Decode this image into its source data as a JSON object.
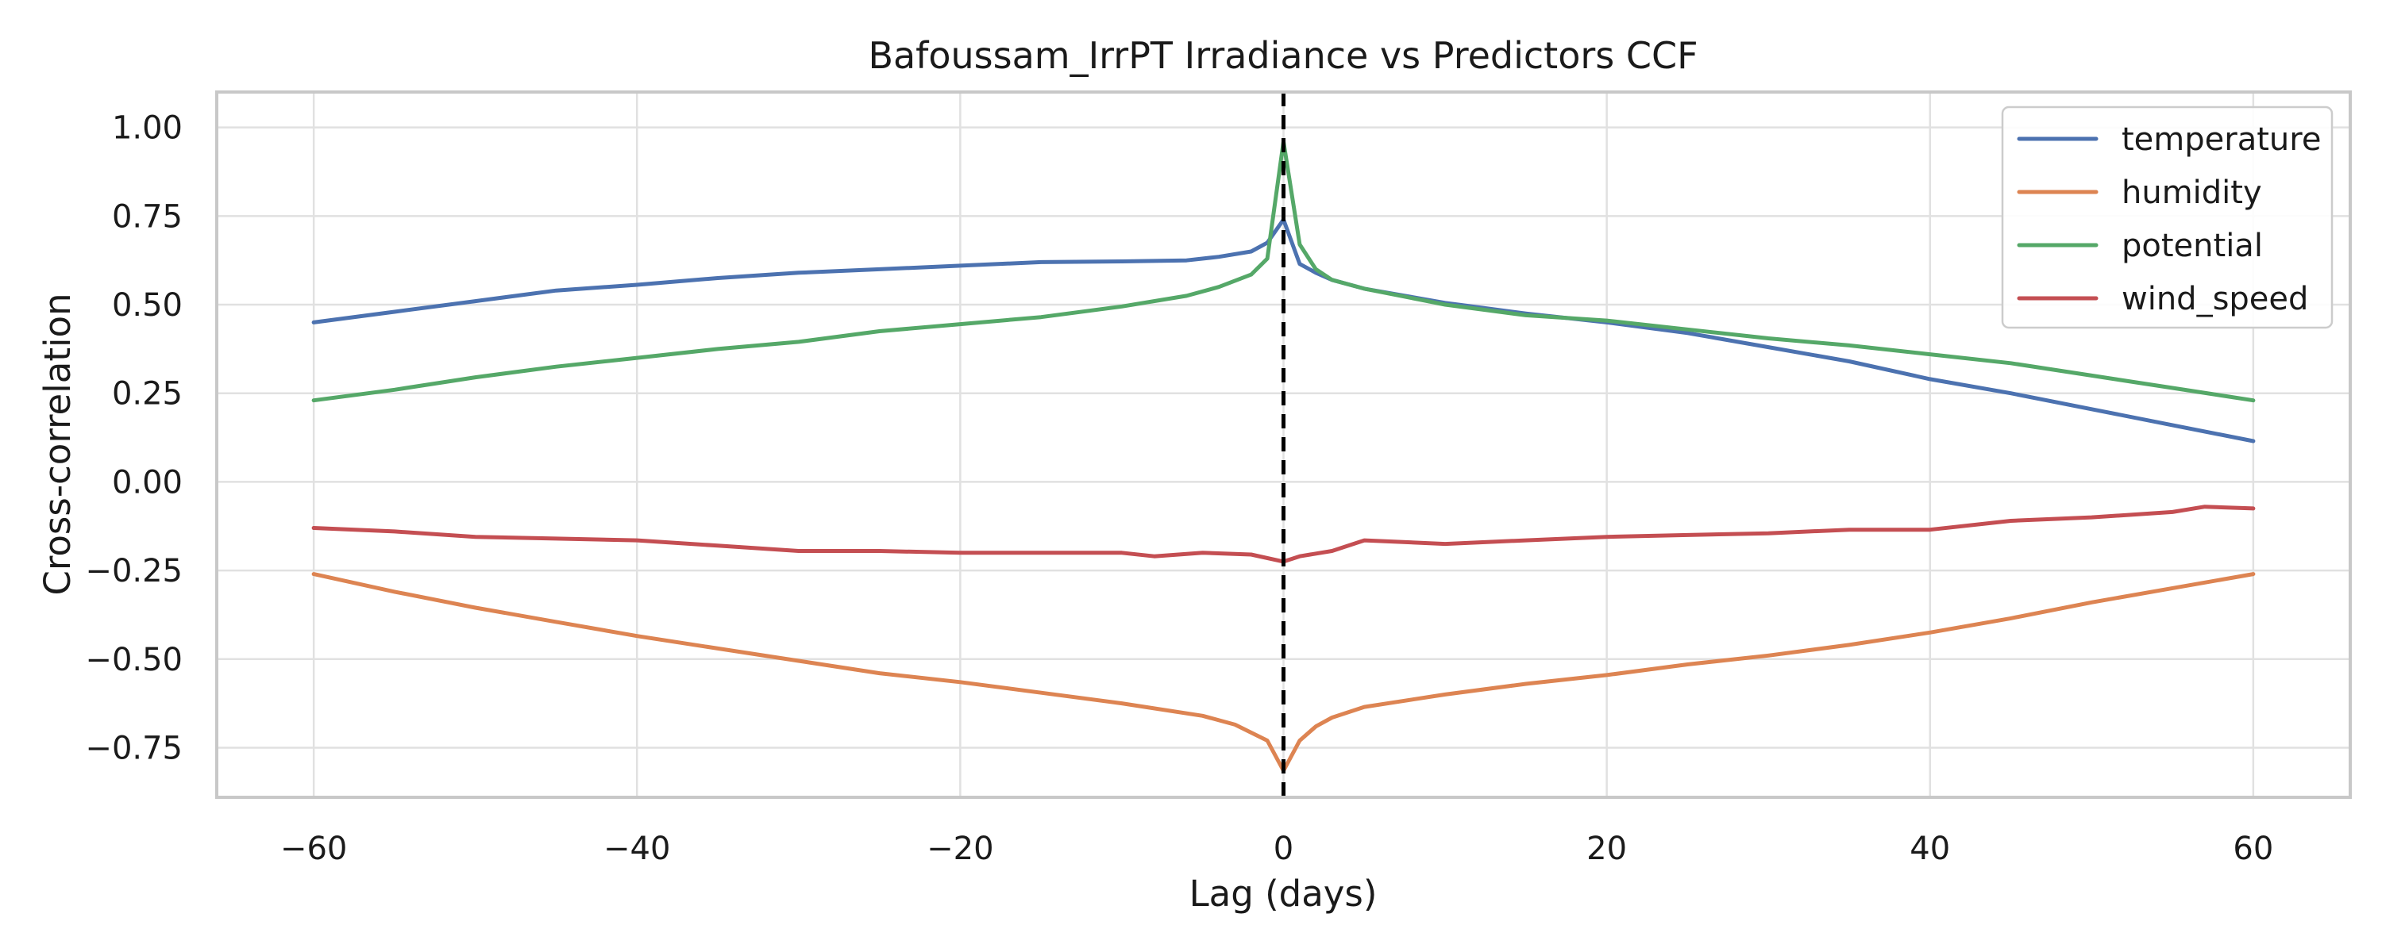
{
  "chart_data": {
    "type": "line",
    "title": "Bafoussam_IrrPT Irradiance vs Predictors CCF",
    "xlabel": "Lag (days)",
    "ylabel": "Cross-correlation",
    "xlim": [
      -66,
      66
    ],
    "ylim": [
      -0.89,
      1.1
    ],
    "xticks": [
      -60,
      -40,
      -20,
      0,
      20,
      40,
      60
    ],
    "xtick_labels": [
      "−60",
      "−40",
      "−20",
      "0",
      "20",
      "40",
      "60"
    ],
    "yticks": [
      1.0,
      0.75,
      0.5,
      0.25,
      0.0,
      -0.25,
      -0.5,
      -0.75
    ],
    "ytick_labels": [
      "1.00",
      "0.75",
      "0.50",
      "0.25",
      "0.00",
      "−0.25",
      "−0.50",
      "−0.75"
    ],
    "grid": true,
    "legend_position": "top-right",
    "reference_line": {
      "x": 0,
      "style": "dashed",
      "color": "#000000"
    },
    "series": [
      {
        "name": "temperature",
        "color": "#4c72b0",
        "points": [
          [
            -60,
            0.45
          ],
          [
            -55,
            0.48
          ],
          [
            -50,
            0.51
          ],
          [
            -45,
            0.54
          ],
          [
            -40,
            0.556
          ],
          [
            -35,
            0.575
          ],
          [
            -30,
            0.59
          ],
          [
            -25,
            0.6
          ],
          [
            -20,
            0.61
          ],
          [
            -15,
            0.62
          ],
          [
            -10,
            0.622
          ],
          [
            -6,
            0.625
          ],
          [
            -4,
            0.635
          ],
          [
            -2,
            0.65
          ],
          [
            -1,
            0.675
          ],
          [
            0,
            0.74
          ],
          [
            1,
            0.615
          ],
          [
            2,
            0.59
          ],
          [
            3,
            0.57
          ],
          [
            5,
            0.545
          ],
          [
            10,
            0.505
          ],
          [
            15,
            0.475
          ],
          [
            20,
            0.45
          ],
          [
            25,
            0.42
          ],
          [
            30,
            0.38
          ],
          [
            35,
            0.34
          ],
          [
            40,
            0.29
          ],
          [
            45,
            0.25
          ],
          [
            50,
            0.205
          ],
          [
            55,
            0.16
          ],
          [
            60,
            0.115
          ]
        ]
      },
      {
        "name": "humidity",
        "color": "#dd8452",
        "points": [
          [
            -60,
            -0.26
          ],
          [
            -55,
            -0.31
          ],
          [
            -50,
            -0.355
          ],
          [
            -45,
            -0.395
          ],
          [
            -40,
            -0.435
          ],
          [
            -35,
            -0.47
          ],
          [
            -30,
            -0.505
          ],
          [
            -25,
            -0.54
          ],
          [
            -20,
            -0.565
          ],
          [
            -15,
            -0.595
          ],
          [
            -10,
            -0.625
          ],
          [
            -5,
            -0.66
          ],
          [
            -3,
            -0.685
          ],
          [
            -1,
            -0.73
          ],
          [
            0,
            -0.815
          ],
          [
            1,
            -0.73
          ],
          [
            2,
            -0.69
          ],
          [
            3,
            -0.665
          ],
          [
            5,
            -0.635
          ],
          [
            10,
            -0.6
          ],
          [
            15,
            -0.57
          ],
          [
            20,
            -0.545
          ],
          [
            25,
            -0.515
          ],
          [
            30,
            -0.49
          ],
          [
            35,
            -0.46
          ],
          [
            40,
            -0.425
          ],
          [
            45,
            -0.385
          ],
          [
            50,
            -0.34
          ],
          [
            55,
            -0.3
          ],
          [
            60,
            -0.26
          ]
        ]
      },
      {
        "name": "potential",
        "color": "#55a868",
        "points": [
          [
            -60,
            0.23
          ],
          [
            -55,
            0.26
          ],
          [
            -50,
            0.295
          ],
          [
            -45,
            0.325
          ],
          [
            -40,
            0.35
          ],
          [
            -35,
            0.375
          ],
          [
            -30,
            0.395
          ],
          [
            -25,
            0.425
          ],
          [
            -20,
            0.445
          ],
          [
            -15,
            0.465
          ],
          [
            -10,
            0.495
          ],
          [
            -6,
            0.525
          ],
          [
            -4,
            0.55
          ],
          [
            -2,
            0.585
          ],
          [
            -1,
            0.63
          ],
          [
            0,
            0.96
          ],
          [
            1,
            0.67
          ],
          [
            2,
            0.6
          ],
          [
            3,
            0.57
          ],
          [
            5,
            0.545
          ],
          [
            10,
            0.5
          ],
          [
            15,
            0.47
          ],
          [
            20,
            0.455
          ],
          [
            25,
            0.43
          ],
          [
            30,
            0.405
          ],
          [
            35,
            0.385
          ],
          [
            40,
            0.36
          ],
          [
            45,
            0.335
          ],
          [
            50,
            0.3
          ],
          [
            55,
            0.265
          ],
          [
            60,
            0.23
          ]
        ]
      },
      {
        "name": "wind_speed",
        "color": "#c44e52",
        "points": [
          [
            -60,
            -0.13
          ],
          [
            -55,
            -0.14
          ],
          [
            -50,
            -0.155
          ],
          [
            -45,
            -0.16
          ],
          [
            -40,
            -0.165
          ],
          [
            -35,
            -0.18
          ],
          [
            -30,
            -0.195
          ],
          [
            -25,
            -0.195
          ],
          [
            -20,
            -0.2
          ],
          [
            -15,
            -0.2
          ],
          [
            -10,
            -0.2
          ],
          [
            -8,
            -0.21
          ],
          [
            -5,
            -0.2
          ],
          [
            -2,
            -0.205
          ],
          [
            0,
            -0.225
          ],
          [
            1,
            -0.21
          ],
          [
            3,
            -0.195
          ],
          [
            5,
            -0.165
          ],
          [
            10,
            -0.175
          ],
          [
            15,
            -0.165
          ],
          [
            20,
            -0.155
          ],
          [
            25,
            -0.15
          ],
          [
            30,
            -0.145
          ],
          [
            35,
            -0.135
          ],
          [
            40,
            -0.135
          ],
          [
            45,
            -0.11
          ],
          [
            50,
            -0.1
          ],
          [
            55,
            -0.085
          ],
          [
            57,
            -0.07
          ],
          [
            60,
            -0.075
          ]
        ]
      }
    ]
  }
}
